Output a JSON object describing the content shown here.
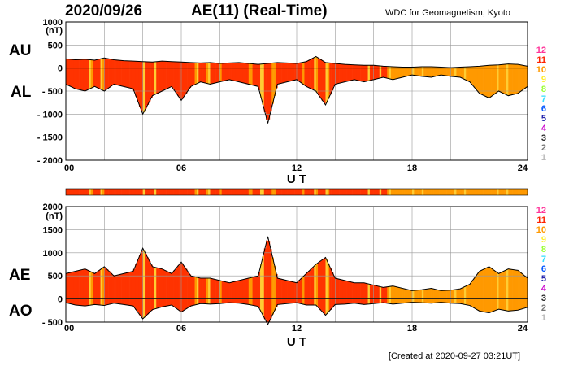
{
  "header": {
    "date": "2020/09/26",
    "title": "AE(11) (Real-Time)",
    "source": "WDC for Geomagnetism, Kyoto",
    "created": "[Created at 2020-09-27 03:21UT]"
  },
  "labels": {
    "au": "AU",
    "al": "AL",
    "ae": "AE",
    "ao": "AO"
  },
  "scale_legend": [
    {
      "label": "12",
      "color": "#ff3399"
    },
    {
      "label": "11",
      "color": "#ff2200"
    },
    {
      "label": "10",
      "color": "#ff9900"
    },
    {
      "label": "9",
      "color": "#ffee33"
    },
    {
      "label": "8",
      "color": "#99ff33"
    },
    {
      "label": "7",
      "color": "#33ddff"
    },
    {
      "label": "6",
      "color": "#0055ff"
    },
    {
      "label": "5",
      "color": "#2222aa"
    },
    {
      "label": "4",
      "color": "#cc00cc"
    },
    {
      "label": "3",
      "color": "#222222"
    },
    {
      "label": "2",
      "color": "#777777"
    },
    {
      "label": "1",
      "color": "#bbbbbb"
    }
  ],
  "colors": {
    "stations_11": "#ff3300",
    "stations_10": "#ff9900",
    "stations_9": "#ffcc33",
    "grid": "#999999"
  },
  "chart_data": [
    {
      "type": "area",
      "name": "AU/AL",
      "xlabel": "U T",
      "ylabel": "(nT)",
      "x_ticks": [
        "00",
        "06",
        "12",
        "18",
        "24"
      ],
      "x_range": [
        0,
        24
      ],
      "ylim": [
        -2000,
        1000
      ],
      "y_ticks": [
        1000,
        500,
        0,
        -500,
        -1000,
        -1500,
        -2000
      ],
      "y_tick_labels": [
        "1000",
        "500",
        "0",
        "- 500",
        "- 1000",
        "- 1500",
        "- 2000"
      ],
      "series": [
        {
          "name": "AU",
          "x": [
            0,
            0.5,
            1,
            1.5,
            2,
            2.5,
            3,
            3.5,
            4,
            4.5,
            5,
            5.5,
            6,
            6.5,
            7,
            7.5,
            8,
            8.5,
            9,
            9.5,
            10,
            10.5,
            11,
            11.5,
            12,
            12.5,
            13,
            13.5,
            14,
            14.5,
            15,
            15.5,
            16,
            16.5,
            17,
            17.5,
            18,
            18.5,
            19,
            19.5,
            20,
            20.5,
            21,
            21.5,
            22,
            22.5,
            23,
            23.5,
            24
          ],
          "values": [
            200,
            180,
            190,
            170,
            220,
            180,
            160,
            150,
            140,
            130,
            150,
            140,
            130,
            120,
            110,
            120,
            100,
            110,
            120,
            100,
            80,
            100,
            120,
            110,
            100,
            140,
            250,
            120,
            100,
            80,
            70,
            60,
            60,
            40,
            30,
            20,
            20,
            30,
            30,
            20,
            10,
            20,
            30,
            40,
            60,
            70,
            90,
            80,
            40
          ]
        },
        {
          "name": "AL",
          "x": [
            0,
            0.5,
            1,
            1.5,
            2,
            2.5,
            3,
            3.5,
            4,
            4.5,
            5,
            5.5,
            6,
            6.5,
            7,
            7.5,
            8,
            8.5,
            9,
            9.5,
            10,
            10.5,
            11,
            11.5,
            12,
            12.5,
            13,
            13.5,
            14,
            14.5,
            15,
            15.5,
            16,
            16.5,
            17,
            17.5,
            18,
            18.5,
            19,
            19.5,
            20,
            20.5,
            21,
            21.5,
            22,
            22.5,
            23,
            23.5,
            24
          ],
          "values": [
            -350,
            -450,
            -500,
            -400,
            -500,
            -350,
            -400,
            -450,
            -1000,
            -600,
            -500,
            -400,
            -700,
            -400,
            -300,
            -350,
            -300,
            -250,
            -300,
            -350,
            -400,
            -1200,
            -350,
            -300,
            -250,
            -400,
            -500,
            -800,
            -350,
            -300,
            -250,
            -300,
            -250,
            -200,
            -250,
            -200,
            -150,
            -180,
            -200,
            -150,
            -180,
            -200,
            -300,
            -550,
            -650,
            -500,
            -600,
            -550,
            -400
          ]
        }
      ]
    },
    {
      "type": "area",
      "name": "AE/AO",
      "xlabel": "U T",
      "ylabel": "(nT)",
      "x_ticks": [
        "00",
        "06",
        "12",
        "18",
        "24"
      ],
      "x_range": [
        0,
        24
      ],
      "ylim": [
        -500,
        2000
      ],
      "y_ticks": [
        2000,
        1500,
        1000,
        500,
        0,
        -500
      ],
      "y_tick_labels": [
        "2000",
        "1500",
        "1000",
        "500",
        "0",
        "- 500"
      ],
      "series": [
        {
          "name": "AE_upper",
          "x": [
            0,
            0.5,
            1,
            1.5,
            2,
            2.5,
            3,
            3.5,
            4,
            4.5,
            5,
            5.5,
            6,
            6.5,
            7,
            7.5,
            8,
            8.5,
            9,
            9.5,
            10,
            10.5,
            11,
            11.5,
            12,
            12.5,
            13,
            13.5,
            14,
            14.5,
            15,
            15.5,
            16,
            16.5,
            17,
            17.5,
            18,
            18.5,
            19,
            19.5,
            20,
            20.5,
            21,
            21.5,
            22,
            22.5,
            23,
            23.5,
            24
          ],
          "values": [
            550,
            600,
            650,
            550,
            700,
            500,
            550,
            600,
            1100,
            700,
            650,
            550,
            800,
            500,
            450,
            450,
            400,
            350,
            400,
            450,
            500,
            1350,
            450,
            400,
            350,
            550,
            750,
            900,
            450,
            400,
            350,
            350,
            300,
            250,
            280,
            230,
            180,
            200,
            230,
            180,
            190,
            220,
            320,
            600,
            700,
            550,
            650,
            620,
            450
          ]
        },
        {
          "name": "AO_lower",
          "x": [
            0,
            0.5,
            1,
            1.5,
            2,
            2.5,
            3,
            3.5,
            4,
            4.5,
            5,
            5.5,
            6,
            6.5,
            7,
            7.5,
            8,
            8.5,
            9,
            9.5,
            10,
            10.5,
            11,
            11.5,
            12,
            12.5,
            13,
            13.5,
            14,
            14.5,
            15,
            15.5,
            16,
            16.5,
            17,
            17.5,
            18,
            18.5,
            19,
            19.5,
            20,
            20.5,
            21,
            21.5,
            22,
            22.5,
            23,
            23.5,
            24
          ],
          "values": [
            -80,
            -130,
            -150,
            -120,
            -140,
            -90,
            -120,
            -150,
            -430,
            -230,
            -170,
            -130,
            -280,
            -150,
            -100,
            -110,
            -100,
            -80,
            -90,
            -120,
            -160,
            -550,
            -120,
            -100,
            -80,
            -130,
            -130,
            -350,
            -120,
            -110,
            -90,
            -120,
            -100,
            -80,
            -110,
            -90,
            -70,
            -80,
            -90,
            -70,
            -90,
            -100,
            -140,
            -260,
            -300,
            -220,
            -260,
            -240,
            -180
          ]
        }
      ]
    }
  ],
  "axis_unit": "(nT)",
  "x_axis_label": "U T"
}
